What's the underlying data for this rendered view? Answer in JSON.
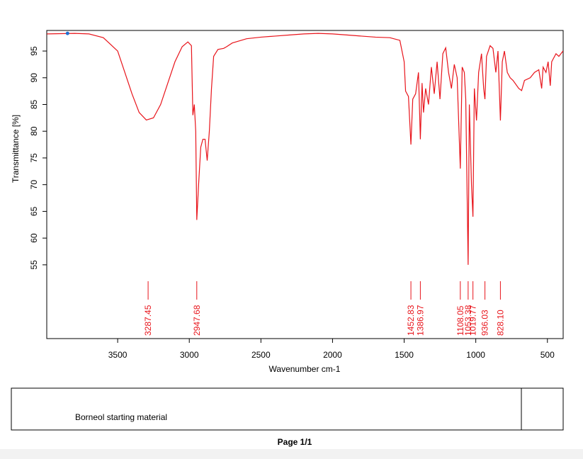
{
  "chart_data": {
    "type": "line",
    "ylabel": "Transmittance [%]",
    "xlabel": "Wavenumber cm-1",
    "x": [
      3994,
      3800,
      3700,
      3600,
      3500,
      3450,
      3400,
      3350,
      3300,
      3250,
      3200,
      3150,
      3100,
      3050,
      3010,
      2985,
      2975,
      2965,
      2955,
      2947.68,
      2935,
      2920,
      2905,
      2890,
      2875,
      2860,
      2845,
      2830,
      2800,
      2760,
      2740,
      2700,
      2600,
      2500,
      2400,
      2300,
      2200,
      2100,
      2000,
      1900,
      1800,
      1700,
      1600,
      1530,
      1500,
      1490,
      1470,
      1452.83,
      1440,
      1420,
      1400,
      1386.97,
      1375,
      1365,
      1350,
      1330,
      1310,
      1290,
      1270,
      1250,
      1230,
      1210,
      1190,
      1170,
      1150,
      1130,
      1108.05,
      1095,
      1080,
      1070,
      1053.38,
      1045,
      1030,
      1019.77,
      1010,
      995,
      980,
      960,
      945,
      936.03,
      925,
      900,
      880,
      860,
      845,
      828.1,
      815,
      800,
      780,
      760,
      740,
      700,
      680,
      660,
      620,
      590,
      560,
      540,
      530,
      510,
      495,
      480,
      470,
      440,
      420,
      391
    ],
    "series": [
      {
        "color": "#e8141b",
        "values": [
          98.2,
          98.3,
          98.2,
          97.5,
          95,
          91,
          87,
          83.5,
          82.1,
          82.5,
          85,
          89,
          93,
          95.8,
          96.7,
          96,
          83,
          85,
          80,
          63.4,
          70,
          77,
          78.5,
          78.5,
          74.5,
          80,
          88,
          94,
          95.3,
          95.5,
          95.8,
          96.5,
          97.3,
          97.6,
          97.8,
          98,
          98.2,
          98.3,
          98.2,
          98,
          97.8,
          97.6,
          97.5,
          97,
          93,
          87.5,
          86.5,
          77.5,
          86,
          87,
          91,
          78.5,
          89,
          83.5,
          88,
          85,
          92,
          87,
          93,
          86,
          94.5,
          95.6,
          91,
          88,
          92.5,
          90,
          73,
          92,
          91,
          86,
          55,
          85,
          70,
          64,
          88,
          82,
          91,
          94.5,
          88,
          86,
          94,
          96,
          95.5,
          91,
          95,
          82,
          93,
          95,
          91,
          90,
          89.5,
          88,
          87.6,
          89.5,
          90,
          91,
          91.5,
          88,
          92,
          91,
          93,
          88.5,
          93,
          94.5,
          94,
          95
        ]
      }
    ],
    "marker": {
      "x": 3850,
      "y": 98.3,
      "color": "#1f6fd1"
    },
    "xlim": [
      3995,
      390
    ],
    "ylim": [
      41.2,
      98.85
    ],
    "xticks": [
      3500,
      3000,
      2500,
      2000,
      1500,
      1000,
      500
    ],
    "yticks": [
      55,
      60,
      65,
      70,
      75,
      80,
      85,
      90,
      95
    ],
    "peaks": [
      {
        "value": 3287.45,
        "label": "3287.45"
      },
      {
        "value": 2947.68,
        "label": "2947.68"
      },
      {
        "value": 1452.83,
        "label": "1452.83"
      },
      {
        "value": 1386.97,
        "label": "1386.97"
      },
      {
        "value": 1108.05,
        "label": "1108.05"
      },
      {
        "value": 1053.38,
        "label": "1053.38"
      },
      {
        "value": 1019.77,
        "label": "1019.77"
      },
      {
        "value": 936.03,
        "label": "936.03"
      },
      {
        "value": 828.1,
        "label": "828.10"
      }
    ],
    "peak_color": "#e8141b"
  },
  "footer": {
    "sample": "Borneol starting material",
    "page": "Page 1/1"
  }
}
